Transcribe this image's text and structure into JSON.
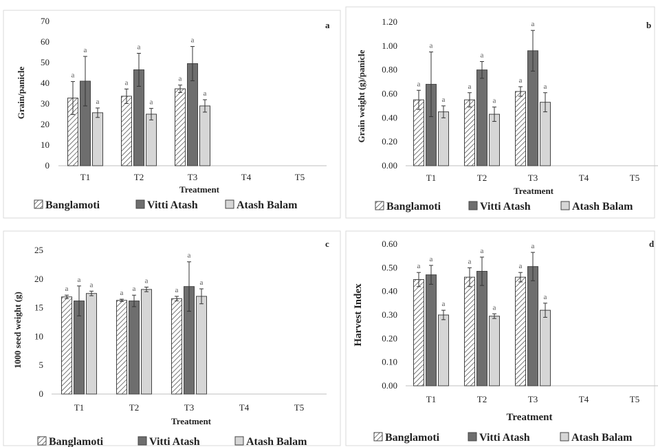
{
  "colors": {
    "Banglamoti": "#ffffff",
    "Vitti Atash": "#6e6e6e",
    "Atash Balam": "#d6d6d6",
    "axis": "#bfbfbf",
    "errorbar": "#333333"
  },
  "chart_data": [
    {
      "panel": "a",
      "type": "bar",
      "categories": [
        "T1",
        "T2",
        "T3",
        "T4",
        "T5"
      ],
      "xlabel": "Treatment",
      "ylabel": "Grain/panicle",
      "ylim": [
        0,
        70
      ],
      "yticks": [
        "0",
        "10",
        "20",
        "30",
        "40",
        "50",
        "60",
        "70"
      ],
      "series": [
        {
          "name": "Banglamoti",
          "values": [
            32.8,
            33.7,
            37.3,
            0,
            0
          ],
          "errors": [
            8,
            3.5,
            1.8,
            0,
            0
          ],
          "labels": [
            "a",
            "a",
            "a",
            "",
            ""
          ]
        },
        {
          "name": "Vitti Atash",
          "values": [
            41,
            46.5,
            49.5,
            0,
            0
          ],
          "errors": [
            12,
            8,
            8.3,
            0,
            0
          ],
          "labels": [
            "a",
            "a",
            "a",
            "",
            ""
          ]
        },
        {
          "name": "Atash Balam",
          "values": [
            25.7,
            25,
            29,
            0,
            0
          ],
          "errors": [
            2.3,
            2.8,
            3,
            0,
            0
          ],
          "labels": [
            "a",
            "a",
            "a",
            "",
            ""
          ]
        }
      ]
    },
    {
      "panel": "b",
      "type": "bar",
      "categories": [
        "T1",
        "T2",
        "T3",
        "T4",
        "T5"
      ],
      "xlabel": "Treatment",
      "ylabel": "Grain weight (g)/panicle",
      "ylim": [
        0,
        1.2
      ],
      "yticks": [
        "0.00",
        "0.20",
        "0.40",
        "0.60",
        "0.80",
        "1.00",
        "1.20"
      ],
      "series": [
        {
          "name": "Banglamoti",
          "values": [
            0.55,
            0.55,
            0.62,
            0,
            0
          ],
          "errors": [
            0.08,
            0.06,
            0.04,
            0,
            0
          ],
          "labels": [
            "a",
            "a",
            "a",
            "",
            ""
          ]
        },
        {
          "name": "Vitti Atash",
          "values": [
            0.68,
            0.8,
            0.96,
            0,
            0
          ],
          "errors": [
            0.27,
            0.07,
            0.17,
            0,
            0
          ],
          "labels": [
            "a",
            "a",
            "a",
            "",
            ""
          ]
        },
        {
          "name": "Atash Balam",
          "values": [
            0.45,
            0.43,
            0.53,
            0,
            0
          ],
          "errors": [
            0.05,
            0.06,
            0.08,
            0,
            0
          ],
          "labels": [
            "a",
            "a",
            "a",
            "",
            ""
          ]
        }
      ]
    },
    {
      "panel": "c",
      "type": "bar",
      "categories": [
        "T1",
        "T2",
        "T3",
        "T4",
        "T5"
      ],
      "xlabel": "Treatment",
      "ylabel": "1000 seed weight (g)",
      "ylim": [
        0,
        25
      ],
      "yticks": [
        "0",
        "5",
        "10",
        "15",
        "20",
        "25"
      ],
      "series": [
        {
          "name": "Banglamoti",
          "values": [
            16.9,
            16.3,
            16.6,
            0,
            0
          ],
          "errors": [
            0.3,
            0.2,
            0.4,
            0,
            0
          ],
          "labels": [
            "a",
            "a",
            "a",
            "",
            ""
          ]
        },
        {
          "name": "Vitti Atash",
          "values": [
            16.2,
            16.2,
            18.7,
            0,
            0
          ],
          "errors": [
            2.6,
            1.0,
            4.3,
            0,
            0
          ],
          "labels": [
            "a",
            "a",
            "a",
            "",
            ""
          ]
        },
        {
          "name": "Atash Balam",
          "values": [
            17.5,
            18.2,
            17,
            0,
            0
          ],
          "errors": [
            0.4,
            0.4,
            1.3,
            0,
            0
          ],
          "labels": [
            "a",
            "a",
            "a",
            "",
            ""
          ]
        }
      ]
    },
    {
      "panel": "d",
      "type": "bar",
      "categories": [
        "T1",
        "T2",
        "T3",
        "T4",
        "T5"
      ],
      "xlabel": "Treatment",
      "ylabel": "Harvest Index",
      "ylim": [
        0,
        0.6
      ],
      "yticks": [
        "0.00",
        "0.10",
        "0.20",
        "0.30",
        "0.40",
        "0.50",
        "0.60"
      ],
      "series": [
        {
          "name": "Banglamoti",
          "values": [
            0.45,
            0.46,
            0.46,
            0,
            0
          ],
          "errors": [
            0.03,
            0.04,
            0.02,
            0,
            0
          ],
          "labels": [
            "a",
            "a",
            "a",
            "",
            ""
          ]
        },
        {
          "name": "Vitti Atash",
          "values": [
            0.47,
            0.485,
            0.505,
            0,
            0
          ],
          "errors": [
            0.04,
            0.06,
            0.06,
            0,
            0
          ],
          "labels": [
            "a",
            "a",
            "a",
            "",
            ""
          ]
        },
        {
          "name": "Atash Balam",
          "values": [
            0.3,
            0.295,
            0.32,
            0,
            0
          ],
          "errors": [
            0.02,
            0.01,
            0.03,
            0,
            0
          ],
          "labels": [
            "a",
            "a",
            "a",
            "",
            ""
          ]
        }
      ]
    }
  ]
}
